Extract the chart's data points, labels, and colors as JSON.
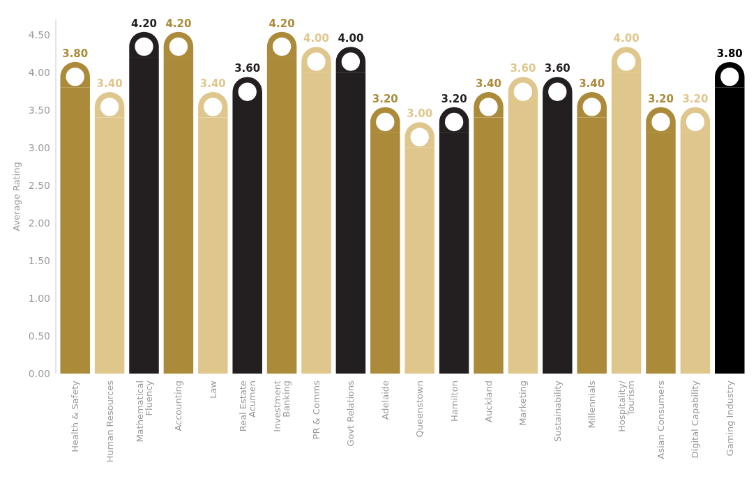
{
  "chart_data": {
    "type": "bar",
    "ylabel": "Average Rating",
    "categories": [
      "Health & Safety",
      "Human Resources",
      "Mathematical\nFluency",
      "Accounting",
      "Law",
      "Real Estate\nAcumen",
      "Investment\nBanking",
      "PR & Comms",
      "Govt Relations",
      "Adelaide",
      "Queenstown",
      "Hamilton",
      "Auckland",
      "Marketing",
      "Sustainability",
      "Millennials",
      "Hospitality/\nTourism",
      "Asian Consumers",
      "Digital Capability",
      "Gaming Industry"
    ],
    "values": [
      3.8,
      3.4,
      4.2,
      4.2,
      3.4,
      3.6,
      4.2,
      4.0,
      4.0,
      3.2,
      3.0,
      3.2,
      3.4,
      3.6,
      3.6,
      3.4,
      4.0,
      3.2,
      3.2,
      3.8
    ],
    "colors": [
      "#ab8a3a",
      "#dfc68c",
      "#231f20",
      "#ab8a3a",
      "#dfc68c",
      "#231f20",
      "#ab8a3a",
      "#dfc68c",
      "#231f20",
      "#ab8a3a",
      "#dfc68c",
      "#231f20",
      "#ab8a3a",
      "#dfc68c",
      "#231f20",
      "#ab8a3a",
      "#dfc68c",
      "#ab8a3a",
      "#dfc68c",
      "#000000"
    ],
    "value_labels": [
      "3.80",
      "3.40",
      "4.20",
      "4.20",
      "3.40",
      "3.60",
      "4.20",
      "4.00",
      "4.00",
      "3.20",
      "3.00",
      "3.20",
      "3.40",
      "3.60",
      "3.60",
      "3.40",
      "4.00",
      "3.20",
      "3.20",
      "3.80"
    ],
    "ylim": [
      0,
      4.7
    ],
    "yticks": [
      {
        "value": 0,
        "label": "0.00"
      },
      {
        "value": 0.5,
        "label": "0.50"
      },
      {
        "value": 1,
        "label": "1.00"
      },
      {
        "value": 1.5,
        "label": "1.50"
      },
      {
        "value": 2,
        "label": "2.00"
      },
      {
        "value": 2.5,
        "label": "2.50"
      },
      {
        "value": 3,
        "label": "3.00"
      },
      {
        "value": 3.5,
        "label": "3.50"
      },
      {
        "value": 4,
        "label": "4.00"
      },
      {
        "value": 4.5,
        "label": "4.50"
      }
    ],
    "grid": false
  }
}
